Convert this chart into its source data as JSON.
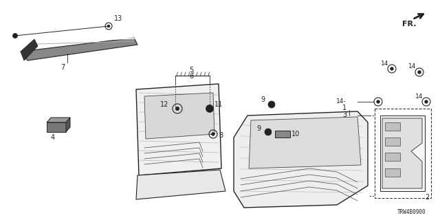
{
  "bg_color": "#ffffff",
  "diagram_code": "TRW4B0900",
  "line_color": "#222222",
  "gray": "#888888",
  "dark_gray": "#444444"
}
